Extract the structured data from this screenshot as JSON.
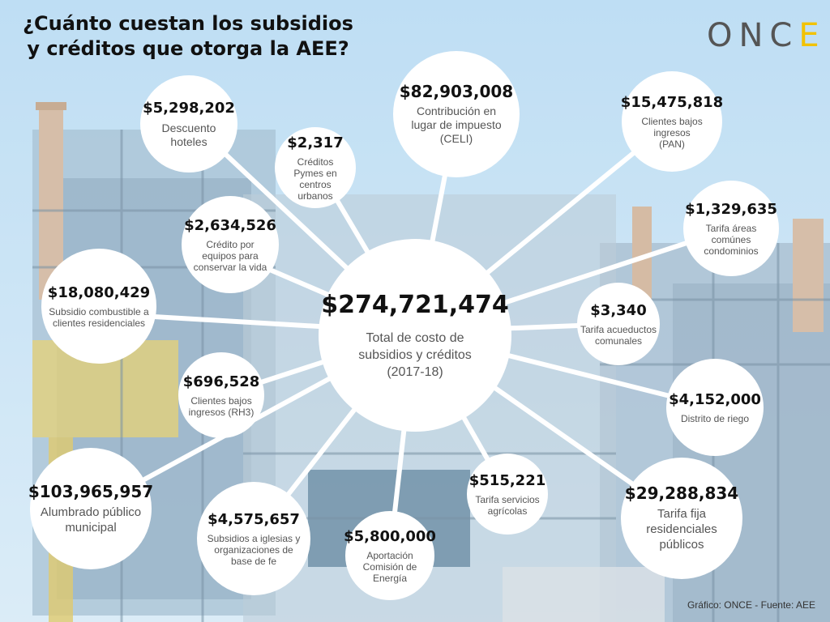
{
  "title": "¿Cuánto cuestan los subsidios y créditos que otorga la AEE?",
  "logo": {
    "text_main": "ONC",
    "text_accent": "E",
    "accent_color": "#f2c200"
  },
  "center": {
    "value": "$274,721,474",
    "label": "Total de costo de subsidios y créditos (2017-18)"
  },
  "items": [
    {
      "value": "$5,298,202",
      "label": "Descuento hoteles"
    },
    {
      "value": "$2,317",
      "label": "Créditos Pymes en centros urbanos"
    },
    {
      "value": "$82,903,008",
      "label": "Contribución en lugar de impuesto (CELI)"
    },
    {
      "value": "$15,475,818",
      "label": "Clientes bajos ingresos (PAN)"
    },
    {
      "value": "$1,329,635",
      "label": "Tarifa áreas comúnes condominios"
    },
    {
      "value": "$2,634,526",
      "label": "Crédito por equipos para conservar la vida"
    },
    {
      "value": "$18,080,429",
      "label": "Subsidio combustible a clientes residenciales"
    },
    {
      "value": "$3,340",
      "label": "Tarifa acueductos comunales"
    },
    {
      "value": "$696,528",
      "label": "Clientes bajos ingresos (RH3)"
    },
    {
      "value": "$4,152,000",
      "label": "Distrito de riego"
    },
    {
      "value": "$103,965,957",
      "label": "Alumbrado público municipal"
    },
    {
      "value": "$515,221",
      "label": "Tarifa servicios agrícolas"
    },
    {
      "value": "$29,288,834",
      "label": "Tarifa fija residenciales públicos"
    },
    {
      "value": "$4,575,657",
      "label": "Subsidios a iglesias y organizaciones de base de fe"
    },
    {
      "value": "$5,800,000",
      "label": "Aportación Comisión de Energía"
    }
  ],
  "credit": "Gráfico: ONCE - Fuente: AEE"
}
